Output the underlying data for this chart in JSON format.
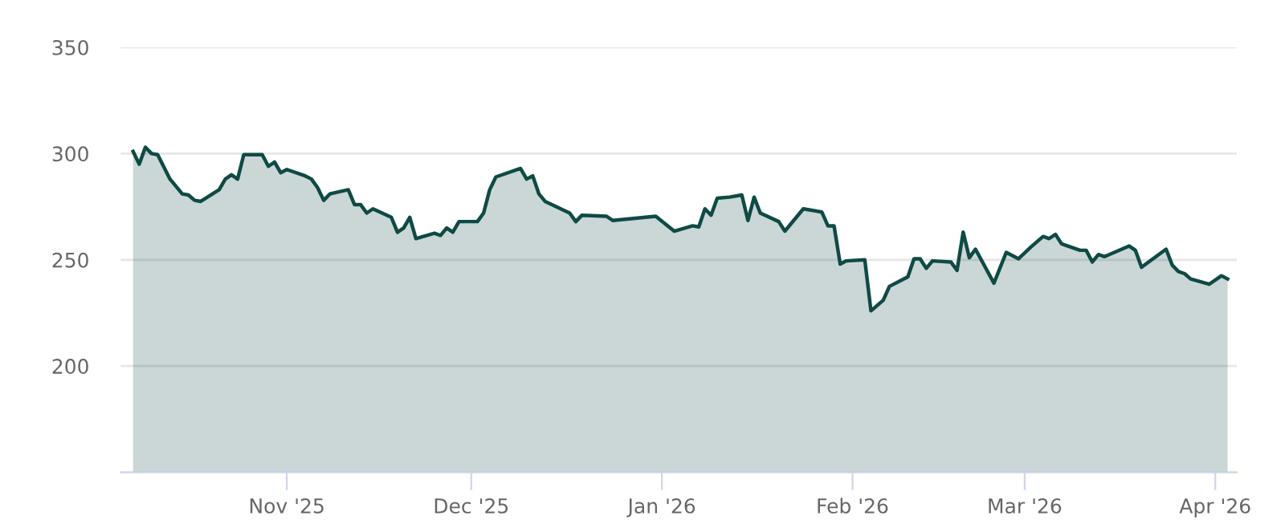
{
  "chart_data": {
    "type": "area",
    "x": [
      "2025-10-07",
      "2025-10-08",
      "2025-10-09",
      "2025-10-10",
      "2025-10-11",
      "2025-10-13",
      "2025-10-15",
      "2025-10-16",
      "2025-10-17",
      "2025-10-18",
      "2025-10-21",
      "2025-10-22",
      "2025-10-23",
      "2025-10-24",
      "2025-10-25",
      "2025-10-28",
      "2025-10-29",
      "2025-10-30",
      "2025-10-31",
      "2025-11-01",
      "2025-11-04",
      "2025-11-05",
      "2025-11-06",
      "2025-11-07",
      "2025-11-08",
      "2025-11-11",
      "2025-11-12",
      "2025-11-13",
      "2025-11-14",
      "2025-11-15",
      "2025-11-18",
      "2025-11-19",
      "2025-11-20",
      "2025-11-21",
      "2025-11-22",
      "2025-11-25",
      "2025-11-26",
      "2025-11-27",
      "2025-11-28",
      "2025-11-29",
      "2025-12-02",
      "2025-12-03",
      "2025-12-04",
      "2025-12-05",
      "2025-12-09",
      "2025-12-10",
      "2025-12-11",
      "2025-12-12",
      "2025-12-13",
      "2025-12-17",
      "2025-12-18",
      "2025-12-19",
      "2025-12-23",
      "2025-12-24",
      "2025-12-31",
      "2026-01-03",
      "2026-01-06",
      "2026-01-07",
      "2026-01-08",
      "2026-01-09",
      "2026-01-10",
      "2026-01-12",
      "2026-01-14",
      "2026-01-15",
      "2026-01-16",
      "2026-01-17",
      "2026-01-20",
      "2026-01-21",
      "2026-01-24",
      "2026-01-27",
      "2026-01-28",
      "2026-01-29",
      "2026-01-30",
      "2026-01-31",
      "2026-02-03",
      "2026-02-04",
      "2026-02-06",
      "2026-02-07",
      "2026-02-10",
      "2026-02-11",
      "2026-02-12",
      "2026-02-13",
      "2026-02-14",
      "2026-02-17",
      "2026-02-18",
      "2026-02-19",
      "2026-02-20",
      "2026-02-21",
      "2026-02-24",
      "2026-02-26",
      "2026-02-28",
      "2026-03-02",
      "2026-03-04",
      "2026-03-05",
      "2026-03-06",
      "2026-03-07",
      "2026-03-10",
      "2026-03-11",
      "2026-03-12",
      "2026-03-13",
      "2026-03-14",
      "2026-03-18",
      "2026-03-19",
      "2026-03-20",
      "2026-03-24",
      "2026-03-25",
      "2026-03-26",
      "2026-03-27",
      "2026-03-28",
      "2026-03-31",
      "2026-04-02",
      "2026-04-03"
    ],
    "series": [
      {
        "color": "#0f4a45",
        "values": [
          301,
          295,
          303,
          300,
          299.5,
          288,
          281,
          280.5,
          278,
          277.5,
          283,
          288,
          290,
          288,
          299.5,
          299.5,
          294,
          296,
          291,
          292.5,
          289.5,
          288,
          284,
          278,
          281,
          283,
          276,
          276,
          272,
          274,
          270,
          263,
          265,
          270,
          260,
          262.5,
          261.5,
          265,
          263,
          268,
          268,
          272,
          283,
          289,
          293,
          288,
          289.5,
          281,
          277.5,
          272,
          268,
          271,
          270.5,
          268.5,
          270.5,
          263.5,
          266,
          265.5,
          274,
          271,
          279,
          279.5,
          280.5,
          268.5,
          279.5,
          272,
          268,
          263.5,
          274,
          272.5,
          266,
          266,
          248,
          249.5,
          250,
          226,
          231,
          237.5,
          242,
          250.5,
          250.5,
          246,
          249.5,
          249,
          245,
          263,
          251,
          255,
          239,
          253.5,
          250.5,
          256,
          261,
          260,
          262,
          257.5,
          254.5,
          254.5,
          249,
          252.5,
          251.5,
          256.5,
          254.5,
          246.5,
          255,
          247.5,
          244.5,
          243.5,
          241,
          238.5,
          242.5,
          241
        ]
      }
    ],
    "xlim": [
      "2025-10-05",
      "2026-04-04T12:00"
    ],
    "xticks": [
      {
        "value": "2025-11-01",
        "label": "Nov '25"
      },
      {
        "value": "2025-12-01",
        "label": "Dec '25"
      },
      {
        "value": "2026-01-01",
        "label": "Jan '26"
      },
      {
        "value": "2026-02-01",
        "label": "Feb '26"
      },
      {
        "value": "2026-03-01",
        "label": "Mar '26"
      },
      {
        "value": "2026-04-01",
        "label": "Apr '26"
      }
    ],
    "ylim": [
      150,
      350
    ],
    "yticks": [
      {
        "value": 150,
        "label": null
      },
      200,
      250,
      300,
      350
    ],
    "grid": "y",
    "legend": false,
    "marker": "none",
    "line_style": "solid"
  }
}
